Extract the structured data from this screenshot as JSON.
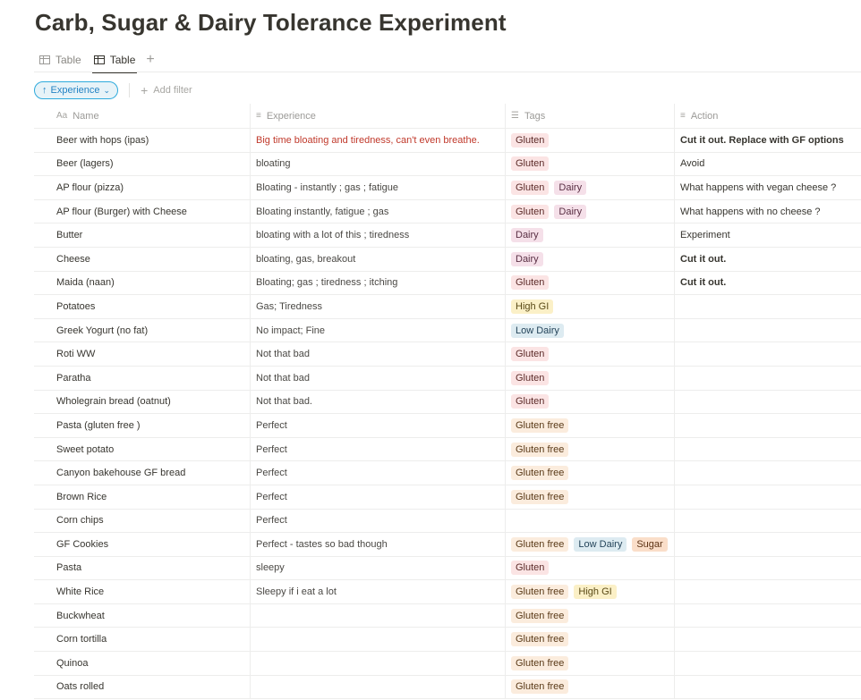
{
  "page": {
    "title": "Carb, Sugar & Dairy Tolerance Experiment"
  },
  "views": [
    {
      "label": "Table",
      "icon": "table-icon",
      "active": false
    },
    {
      "label": "Table",
      "icon": "table-icon",
      "active": true
    }
  ],
  "add_view": "+",
  "filter_bar": {
    "sort_label": "Experience",
    "add_filter_label": "Add filter"
  },
  "columns": [
    {
      "label": "Name",
      "icon": "Aa"
    },
    {
      "label": "Experience",
      "icon": "≡"
    },
    {
      "label": "Tags",
      "icon": "☰"
    },
    {
      "label": "Action",
      "icon": "≡"
    }
  ],
  "tag_colors": {
    "Gluten": "#fbe4e4",
    "Dairy": "#f5e0e9",
    "High GI": "#fbf0c7",
    "Low Dairy": "#ddebf1",
    "Gluten free": "#fbecdd",
    "Sugar": "#fadec9"
  },
  "rows": [
    {
      "name": "Beer with hops (ipas)",
      "experience": "Big time bloating and tiredness, can't even breathe.",
      "experience_color": "#c0392b",
      "tags": [
        "Gluten"
      ],
      "action": "Cut it out. Replace with GF options",
      "action_bold": true
    },
    {
      "name": "Beer (lagers)",
      "experience": "bloating",
      "tags": [
        "Gluten"
      ],
      "action": "Avoid"
    },
    {
      "name": "AP flour (pizza)",
      "experience": "Bloating - instantly ; gas ; fatigue",
      "tags": [
        "Gluten",
        "Dairy"
      ],
      "action": "What happens with vegan cheese ?"
    },
    {
      "name": "AP flour (Burger) with Cheese",
      "experience": "Bloating instantly, fatigue ; gas",
      "tags": [
        "Gluten",
        "Dairy"
      ],
      "action": "What happens with no cheese ?"
    },
    {
      "name": "Butter",
      "experience": "bloating with a lot of this ; tiredness",
      "tags": [
        "Dairy"
      ],
      "action": "Experiment"
    },
    {
      "name": "Cheese",
      "experience": "bloating, gas, breakout",
      "tags": [
        "Dairy"
      ],
      "action": "Cut it out.",
      "action_bold": true
    },
    {
      "name": "Maida (naan)",
      "experience": "Bloating; gas ; tiredness ; itching",
      "tags": [
        "Gluten"
      ],
      "action": "Cut it out.",
      "action_bold": true
    },
    {
      "name": "Potatoes",
      "experience": "Gas; Tiredness",
      "tags": [
        "High GI"
      ],
      "action": ""
    },
    {
      "name": "Greek Yogurt (no fat)",
      "experience": "No impact; Fine",
      "tags": [
        "Low Dairy"
      ],
      "action": ""
    },
    {
      "name": "Roti WW",
      "experience": "Not that bad",
      "tags": [
        "Gluten"
      ],
      "action": ""
    },
    {
      "name": "Paratha",
      "experience": "Not that bad",
      "tags": [
        "Gluten"
      ],
      "action": ""
    },
    {
      "name": "Wholegrain bread (oatnut)",
      "experience": "Not that bad.",
      "tags": [
        "Gluten"
      ],
      "action": ""
    },
    {
      "name": "Pasta (gluten free )",
      "experience": "Perfect",
      "tags": [
        "Gluten free"
      ],
      "action": ""
    },
    {
      "name": "Sweet potato",
      "experience": "Perfect",
      "tags": [
        "Gluten free"
      ],
      "action": ""
    },
    {
      "name": "Canyon bakehouse GF bread",
      "experience": "Perfect",
      "tags": [
        "Gluten free"
      ],
      "action": ""
    },
    {
      "name": "Brown Rice",
      "experience": "Perfect",
      "tags": [
        "Gluten free"
      ],
      "action": ""
    },
    {
      "name": "Corn chips",
      "experience": "Perfect",
      "tags": [],
      "action": ""
    },
    {
      "name": "GF Cookies",
      "experience": "Perfect - tastes so bad though",
      "tags": [
        "Gluten free",
        "Low Dairy",
        "Sugar"
      ],
      "action": ""
    },
    {
      "name": "Pasta",
      "experience": "sleepy",
      "tags": [
        "Gluten"
      ],
      "action": ""
    },
    {
      "name": "White Rice",
      "experience": "Sleepy if i eat a lot",
      "tags": [
        "Gluten free",
        "High GI"
      ],
      "action": ""
    },
    {
      "name": "Buckwheat",
      "experience": "",
      "tags": [
        "Gluten free"
      ],
      "action": ""
    },
    {
      "name": "Corn tortilla",
      "experience": "",
      "tags": [
        "Gluten free"
      ],
      "action": ""
    },
    {
      "name": "Quinoa",
      "experience": "",
      "tags": [
        "Gluten free"
      ],
      "action": ""
    },
    {
      "name": "Oats rolled",
      "experience": "",
      "tags": [
        "Gluten free"
      ],
      "action": ""
    }
  ]
}
